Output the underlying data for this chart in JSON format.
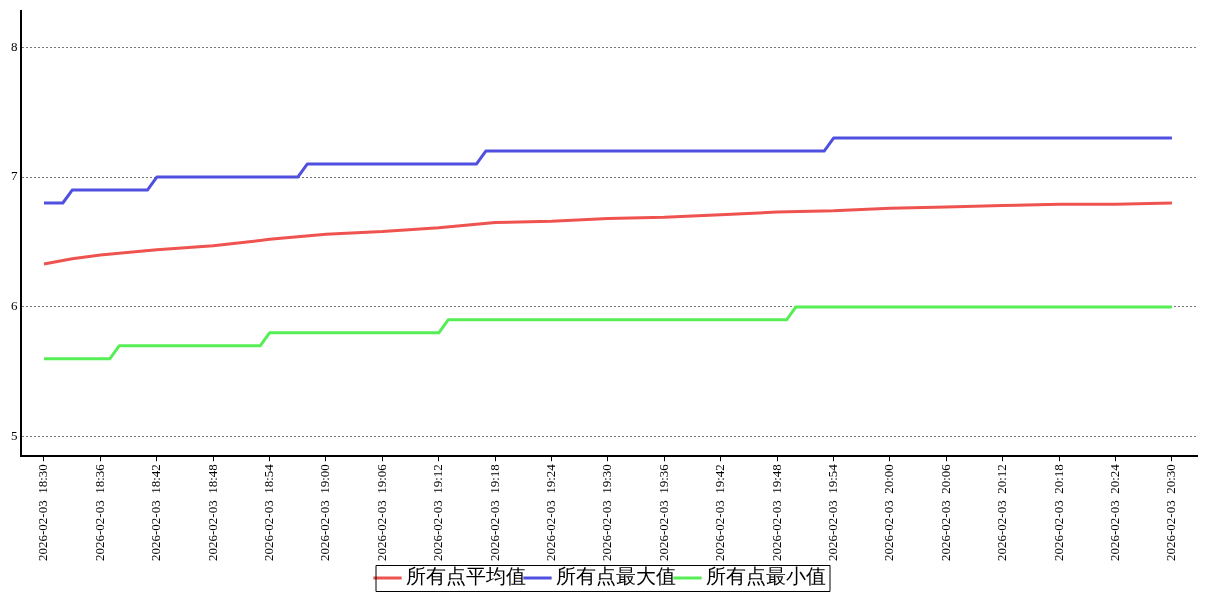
{
  "chart_data": {
    "type": "line",
    "x": [
      "2026-02-03T18:30",
      "2026-02-03T18:33",
      "2026-02-03T18:36",
      "2026-02-03T18:42",
      "2026-02-03T18:48",
      "2026-02-03T18:54",
      "2026-02-03T19:00",
      "2026-02-03T19:06",
      "2026-02-03T19:12",
      "2026-02-03T19:18",
      "2026-02-03T19:24",
      "2026-02-03T19:30",
      "2026-02-03T19:36",
      "2026-02-03T19:42",
      "2026-02-03T19:48",
      "2026-02-03T19:54",
      "2026-02-03T20:00",
      "2026-02-03T20:06",
      "2026-02-03T20:12",
      "2026-02-03T20:18",
      "2026-02-03T20:24",
      "2026-02-03T20:30"
    ],
    "series": [
      {
        "name": "所有点平均值",
        "color": "#ef5350",
        "values": [
          6.33,
          6.37,
          6.4,
          6.44,
          6.47,
          6.52,
          6.56,
          6.58,
          6.61,
          6.65,
          6.66,
          6.68,
          6.69,
          6.71,
          6.73,
          6.74,
          6.76,
          6.77,
          6.78,
          6.79,
          6.79,
          6.8
        ]
      },
      {
        "name": "所有点最大值",
        "color": "#5050e0",
        "x": [
          "2026-02-03T18:30",
          "2026-02-03T18:32",
          "2026-02-03T18:33",
          "2026-02-03T18:41",
          "2026-02-03T18:42",
          "2026-02-03T18:57",
          "2026-02-03T18:58",
          "2026-02-03T19:16",
          "2026-02-03T19:17",
          "2026-02-03T19:53",
          "2026-02-03T19:54",
          "2026-02-03T20:30"
        ],
        "values": [
          6.8,
          6.8,
          6.9,
          6.9,
          7.0,
          7.0,
          7.1,
          7.1,
          7.2,
          7.2,
          7.3,
          7.3
        ]
      },
      {
        "name": "所有点最小值",
        "color": "#55ee55",
        "x": [
          "2026-02-03T18:30",
          "2026-02-03T18:37",
          "2026-02-03T18:38",
          "2026-02-03T18:53",
          "2026-02-03T18:54",
          "2026-02-03T19:12",
          "2026-02-03T19:13",
          "2026-02-03T19:49",
          "2026-02-03T19:50",
          "2026-02-03T20:30"
        ],
        "values": [
          5.6,
          5.6,
          5.7,
          5.7,
          5.8,
          5.8,
          5.9,
          5.9,
          6.0,
          6.0
        ]
      }
    ],
    "xlim": [
      "2026-02-03T18:27:30",
      "2026-02-03T20:32:40"
    ],
    "xticks": [
      {
        "value": "2026-02-03T18:30",
        "label": "2026-02-03  18:30"
      },
      {
        "value": "2026-02-03T18:36",
        "label": "2026-02-03  18:36"
      },
      {
        "value": "2026-02-03T18:42",
        "label": "2026-02-03  18:42"
      },
      {
        "value": "2026-02-03T18:48",
        "label": "2026-02-03  18:48"
      },
      {
        "value": "2026-02-03T18:54",
        "label": "2026-02-03  18:54"
      },
      {
        "value": "2026-02-03T19:00",
        "label": "2026-02-03  19:00"
      },
      {
        "value": "2026-02-03T19:06",
        "label": "2026-02-03  19:06"
      },
      {
        "value": "2026-02-03T19:12",
        "label": "2026-02-03  19:12"
      },
      {
        "value": "2026-02-03T19:18",
        "label": "2026-02-03  19:18"
      },
      {
        "value": "2026-02-03T19:24",
        "label": "2026-02-03  19:24"
      },
      {
        "value": "2026-02-03T19:30",
        "label": "2026-02-03  19:30"
      },
      {
        "value": "2026-02-03T19:36",
        "label": "2026-02-03  19:36"
      },
      {
        "value": "2026-02-03T19:42",
        "label": "2026-02-03  19:42"
      },
      {
        "value": "2026-02-03T19:48",
        "label": "2026-02-03  19:48"
      },
      {
        "value": "2026-02-03T19:54",
        "label": "2026-02-03  19:54"
      },
      {
        "value": "2026-02-03T20:00",
        "label": "2026-02-03  20:00"
      },
      {
        "value": "2026-02-03T20:06",
        "label": "2026-02-03  20:06"
      },
      {
        "value": "2026-02-03T20:12",
        "label": "2026-02-03  20:12"
      },
      {
        "value": "2026-02-03T20:18",
        "label": "2026-02-03  20:18"
      },
      {
        "value": "2026-02-03T20:24",
        "label": "2026-02-03  20:24"
      },
      {
        "value": "2026-02-03T20:30",
        "label": "2026-02-03  20:30"
      }
    ],
    "ylim": [
      4.85,
      8.28
    ],
    "yticks": [
      5,
      6,
      7,
      8
    ],
    "grid": "y",
    "legend": "bottom",
    "marker": "none",
    "line_style": "solid"
  }
}
